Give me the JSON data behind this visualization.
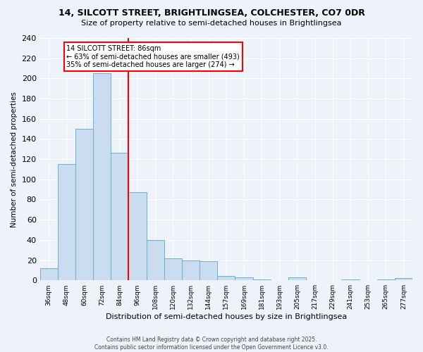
{
  "title_line1": "14, SILCOTT STREET, BRIGHTLINGSEA, COLCHESTER, CO7 0DR",
  "title_line2": "Size of property relative to semi-detached houses in Brightlingsea",
  "xlabel": "Distribution of semi-detached houses by size in Brightlingsea",
  "ylabel": "Number of semi-detached properties",
  "categories": [
    "36sqm",
    "48sqm",
    "60sqm",
    "72sqm",
    "84sqm",
    "96sqm",
    "108sqm",
    "120sqm",
    "132sqm",
    "144sqm",
    "157sqm",
    "169sqm",
    "181sqm",
    "193sqm",
    "205sqm",
    "217sqm",
    "229sqm",
    "241sqm",
    "253sqm",
    "265sqm",
    "277sqm"
  ],
  "values": [
    12,
    115,
    150,
    205,
    126,
    87,
    40,
    22,
    20,
    19,
    4,
    3,
    1,
    0,
    3,
    0,
    0,
    1,
    0,
    1,
    2
  ],
  "bar_color": "#c9dcf0",
  "bar_edge_color": "#6aaed6",
  "red_line_bin_index": 4,
  "annotation_text": "14 SILCOTT STREET: 86sqm\n← 63% of semi-detached houses are smaller (493)\n35% of semi-detached houses are larger (274) →",
  "ylim": [
    0,
    240
  ],
  "yticks": [
    0,
    20,
    40,
    60,
    80,
    100,
    120,
    140,
    160,
    180,
    200,
    220,
    240
  ],
  "background_color": "#edf2fb",
  "grid_color": "#ffffff",
  "footer_line1": "Contains HM Land Registry data © Crown copyright and database right 2025.",
  "footer_line2": "Contains public sector information licensed under the Open Government Licence v3.0."
}
